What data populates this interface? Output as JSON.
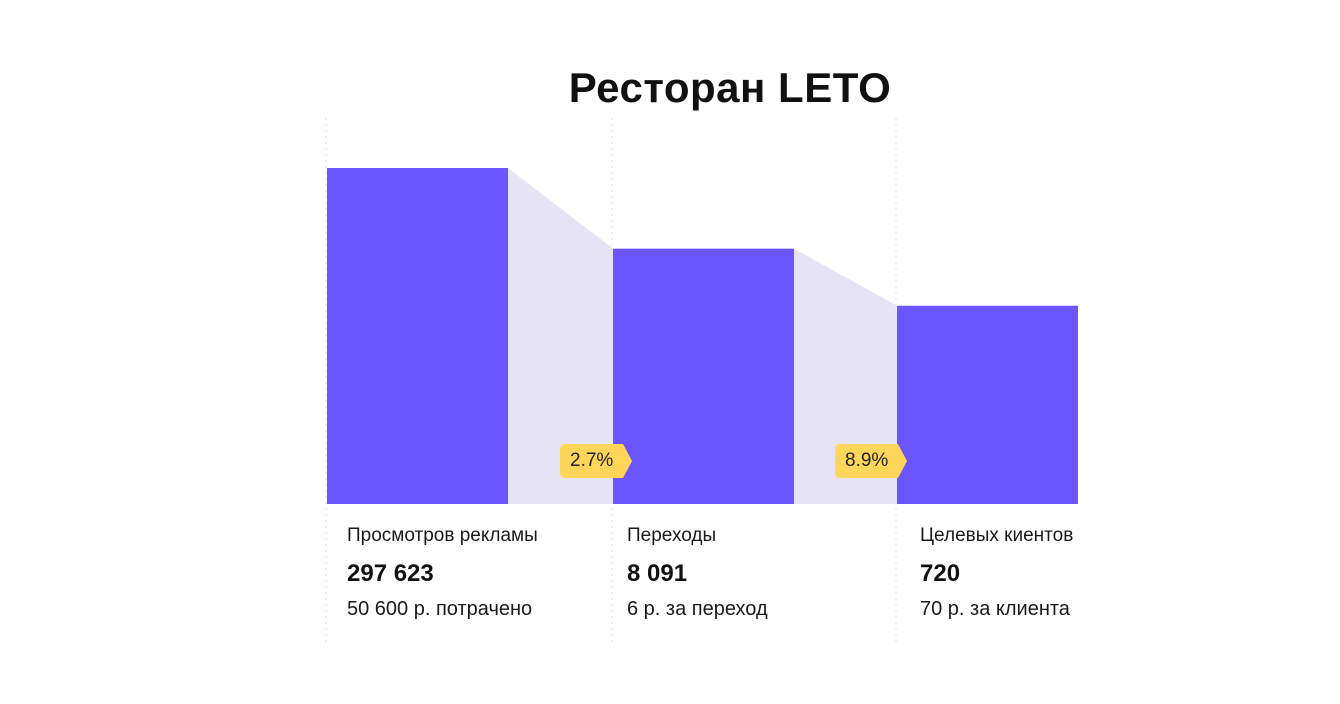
{
  "title": "Ресторан LETO",
  "colors": {
    "bar": "#6B55FF",
    "connector": "#E6E3F5",
    "badge": "#FFD65A",
    "gridline": "#E2E2E2"
  },
  "chart_data": {
    "type": "bar",
    "title": "Ресторан LETO",
    "categories": [
      "Просмотров рекламы",
      "Переходы",
      "Целевых киентов"
    ],
    "values": [
      297623,
      8091,
      720
    ],
    "visual_levels": [
      1.0,
      0.76,
      0.59
    ],
    "value_labels": [
      "297 623",
      "8 091",
      "720"
    ],
    "notes": [
      "50 600 р. потрачено",
      "6 р. за переход",
      "70 р. за клиента"
    ],
    "conversion_rates": [
      "2.7%",
      "8.9%"
    ],
    "grid": false,
    "legend": "none"
  }
}
